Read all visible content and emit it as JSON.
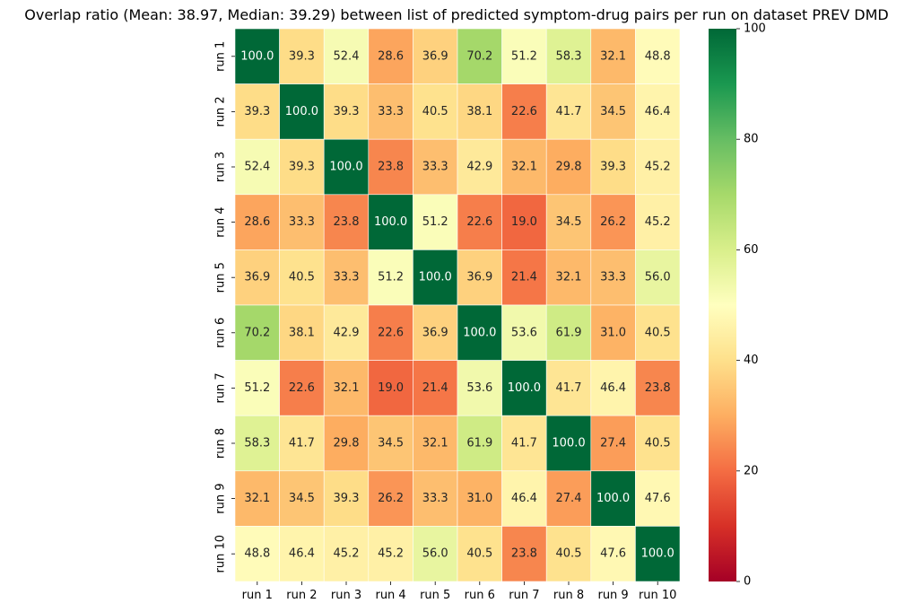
{
  "chart_data": {
    "type": "heatmap",
    "title": "Overlap ratio (Mean: 38.97, Median: 39.29) between list of predicted symptom-drug pairs per run on dataset PREV DMD",
    "xlabel": "",
    "ylabel": "",
    "x_categories": [
      "run 1",
      "run 2",
      "run 3",
      "run 4",
      "run 5",
      "run 6",
      "run 7",
      "run 8",
      "run 9",
      "run 10"
    ],
    "y_categories": [
      "run 1",
      "run 2",
      "run 3",
      "run 4",
      "run 5",
      "run 6",
      "run 7",
      "run 8",
      "run 9",
      "run 10"
    ],
    "values": [
      [
        100.0,
        39.3,
        52.4,
        28.6,
        36.9,
        70.2,
        51.2,
        58.3,
        32.1,
        48.8
      ],
      [
        39.3,
        100.0,
        39.3,
        33.3,
        40.5,
        38.1,
        22.6,
        41.7,
        34.5,
        46.4
      ],
      [
        52.4,
        39.3,
        100.0,
        23.8,
        33.3,
        42.9,
        32.1,
        29.8,
        39.3,
        45.2
      ],
      [
        28.6,
        33.3,
        23.8,
        100.0,
        51.2,
        22.6,
        19.0,
        34.5,
        26.2,
        45.2
      ],
      [
        36.9,
        40.5,
        33.3,
        51.2,
        100.0,
        36.9,
        21.4,
        32.1,
        33.3,
        56.0
      ],
      [
        70.2,
        38.1,
        42.9,
        22.6,
        36.9,
        100.0,
        53.6,
        61.9,
        31.0,
        40.5
      ],
      [
        51.2,
        22.6,
        32.1,
        19.0,
        21.4,
        53.6,
        100.0,
        41.7,
        46.4,
        23.8
      ],
      [
        58.3,
        41.7,
        29.8,
        34.5,
        32.1,
        61.9,
        41.7,
        100.0,
        27.4,
        40.5
      ],
      [
        32.1,
        34.5,
        39.3,
        26.2,
        33.3,
        31.0,
        46.4,
        27.4,
        100.0,
        47.6
      ],
      [
        48.8,
        46.4,
        45.2,
        45.2,
        56.0,
        40.5,
        23.8,
        40.5,
        47.6,
        100.0
      ]
    ],
    "annotation_format": "0.1f",
    "colormap": "RdYlGn",
    "colormap_stops": [
      "#a50026",
      "#d73027",
      "#f46d43",
      "#fdae61",
      "#fee08b",
      "#ffffbf",
      "#d9ef8b",
      "#a6d96a",
      "#66bd63",
      "#1a9850",
      "#006837"
    ],
    "vmin": 0,
    "vmax": 100,
    "colorbar_ticks": [
      0,
      20,
      40,
      60,
      80,
      100
    ],
    "annotation_colors": {
      "light": "#ffffff",
      "dark": "#262626"
    },
    "grid": true
  }
}
